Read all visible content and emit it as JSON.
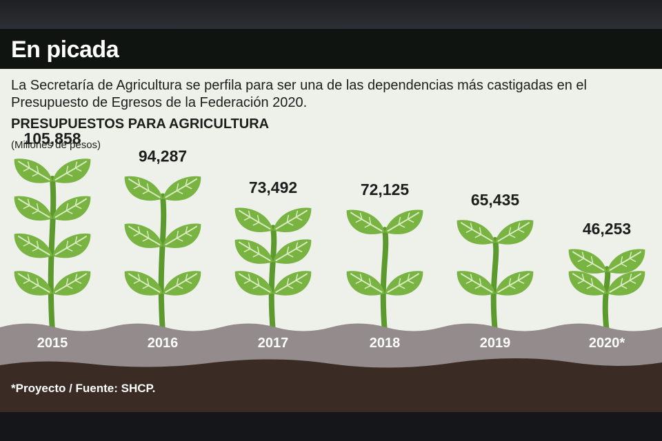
{
  "title": "En picada",
  "description": "La Secretaría de Agricultura se perfila para ser una de las dependencias más castigadas en el Presupuesto de Egresos de la Federación 2020.",
  "footnote": "*Proyecto / Fuente: SHCP.",
  "colors": {
    "header_bg": "#0f1410",
    "background": "#eef0ea",
    "leaf": "#79b342",
    "leaf_vein": "#d9ecc2",
    "stem": "#5c9a2e",
    "soil_top": "#948b8c",
    "soil_bottom": "#3a2b24"
  },
  "chart_data": {
    "type": "bar",
    "title": "PRESUPUESTOS PARA AGRICULTURA",
    "ylabel": "(Millones de pesos)",
    "categories": [
      "2015",
      "2016",
      "2017",
      "2018",
      "2019",
      "2020*"
    ],
    "values": [
      105858,
      94287,
      73492,
      72125,
      65435,
      46253
    ],
    "value_labels": [
      "105,858",
      "94,287",
      "73,492",
      "72,125",
      "65,435",
      "46,253"
    ]
  }
}
